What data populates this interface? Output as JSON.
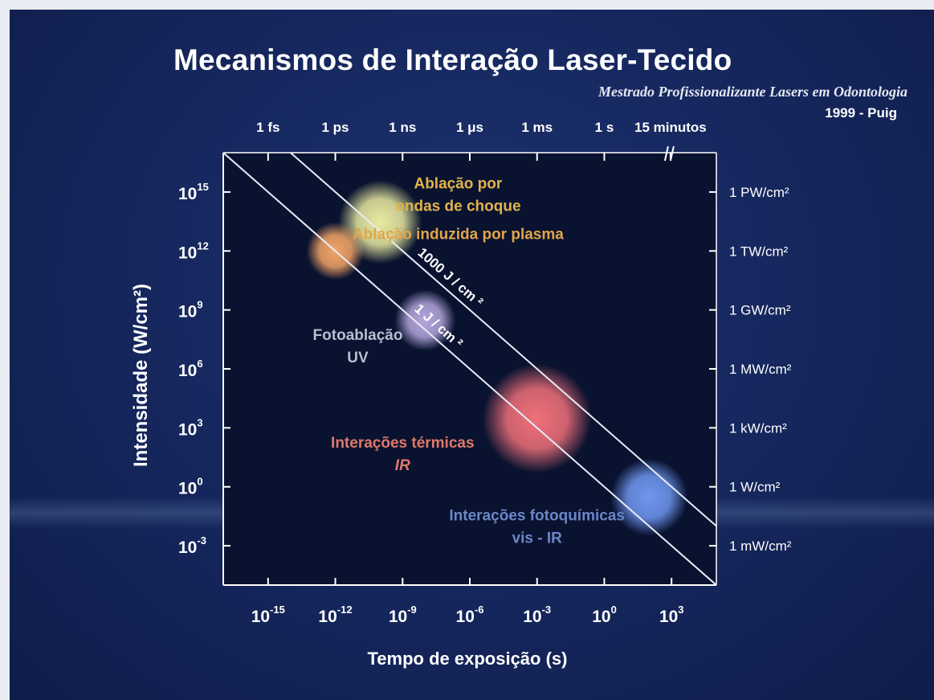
{
  "title": "Mecanismos de Interação Laser-Tecido",
  "subtitle": "Mestrado Profissionalizante Lasers em Odontologia",
  "author": "1999 - Puig",
  "chart_data": {
    "type": "scatter",
    "xlabel": "Tempo de exposição (s)",
    "ylabel": "Intensidade (W/cm²)",
    "x_scale": "log",
    "y_scale": "log",
    "xlim": [
      1e-17,
      100000.0
    ],
    "ylim": [
      1e-05,
      1e+17
    ],
    "x_ticks": [
      {
        "base": "10",
        "exp": "-15",
        "value": 1e-15
      },
      {
        "base": "10",
        "exp": "-12",
        "value": 1e-12
      },
      {
        "base": "10",
        "exp": "-9",
        "value": 1e-09
      },
      {
        "base": "10",
        "exp": "-6",
        "value": 1e-06
      },
      {
        "base": "10",
        "exp": "-3",
        "value": 0.001
      },
      {
        "base": "10",
        "exp": "0",
        "value": 1
      },
      {
        "base": "10",
        "exp": "3",
        "value": 1000.0
      }
    ],
    "y_ticks": [
      {
        "base": "10",
        "exp": "15",
        "value": 1000000000000000.0
      },
      {
        "base": "10",
        "exp": "12",
        "value": 1000000000000.0
      },
      {
        "base": "10",
        "exp": "9",
        "value": 1000000000.0
      },
      {
        "base": "10",
        "exp": "6",
        "value": 1000000.0
      },
      {
        "base": "10",
        "exp": "3",
        "value": 1000.0
      },
      {
        "base": "10",
        "exp": "0",
        "value": 1
      },
      {
        "base": "10",
        "exp": "-3",
        "value": 0.001
      }
    ],
    "top_ticks": [
      {
        "label": "1 fs",
        "value": 1e-15
      },
      {
        "label": "1 ps",
        "value": 1e-12
      },
      {
        "label": "1 ns",
        "value": 1e-09
      },
      {
        "label": "1 μs",
        "value": 1e-06
      },
      {
        "label": "1 ms",
        "value": 0.001
      },
      {
        "label": "1 s",
        "value": 1
      },
      {
        "label": "15 minutos",
        "value": 900
      }
    ],
    "right_ticks": [
      {
        "label": "1 PW/cm²",
        "value": 1000000000000000.0
      },
      {
        "label": "1 TW/cm²",
        "value": 1000000000000.0
      },
      {
        "label": "1 GW/cm²",
        "value": 1000000000.0
      },
      {
        "label": "1 MW/cm²",
        "value": 1000000.0
      },
      {
        "label": "1 kW/cm²",
        "value": 1000.0
      },
      {
        "label": "1 W/cm²",
        "value": 1
      },
      {
        "label": "1 mW/cm²",
        "value": 0.001
      }
    ],
    "fluence_lines": [
      {
        "label": "1 J / cm ²",
        "fluence": 1
      },
      {
        "label": "1000 J / cm ²",
        "fluence": 1000
      }
    ],
    "regions": [
      {
        "name": "Ablação por ondas de choque",
        "x": 1e-10,
        "y": 30000000000000.0,
        "color": "#e8eaa0",
        "text_lines": [
          "Ablação por",
          "ondas de choque"
        ],
        "text_color": "#e3b34a",
        "label_x": 3e-07,
        "label_y": 1500000000000000.0
      },
      {
        "name": "Ablação induzida por plasma",
        "x": 1e-12,
        "y": 1000000000000.0,
        "color": "#f2a467",
        "text_lines": [
          "Ablação induzida por plasma"
        ],
        "text_color": "#e3a54a",
        "label_x": 3e-07,
        "label_y": 4000000000000.0
      },
      {
        "name": "Fotoablação UV",
        "x": 1e-08,
        "y": 300000000.0,
        "color": "#b3a6dc",
        "text_lines": [
          "Fotoablação",
          "UV"
        ],
        "text_color": "#b9bdd0",
        "label_x": 1e-11,
        "label_y": 30000000.0
      },
      {
        "name": "Interações térmicas IR",
        "x": 0.001,
        "y": 3000.0,
        "color": "#f0707a",
        "text_lines": [
          "Interações térmicas",
          "IR"
        ],
        "text_color": "#e0786a",
        "label_x": 1e-09,
        "label_y": 100.0
      },
      {
        "name": "Interações fotoquímicas vis - IR",
        "x": 100.0,
        "y": 0.3,
        "color": "#6f97f0",
        "text_lines": [
          "Interações fotoquímicas",
          "vis - IR"
        ],
        "text_color": "#6b86c8",
        "label_x": 0.001,
        "label_y": 0.02
      }
    ]
  }
}
